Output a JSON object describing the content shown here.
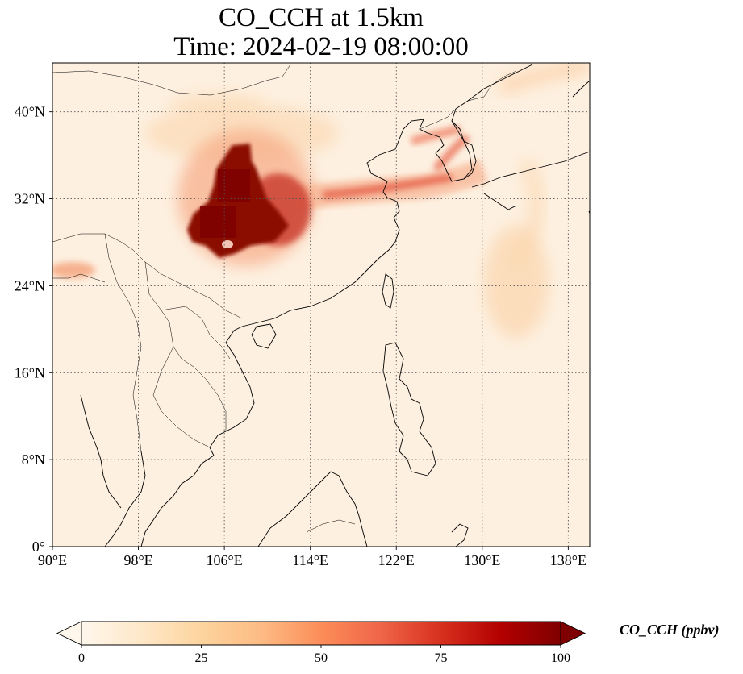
{
  "title": {
    "line1": "CO_CCH at 1.5km",
    "line2": "Time: 2024-02-19 08:00:00"
  },
  "map": {
    "projection": "PlateCarree",
    "lon_range": [
      90,
      140
    ],
    "lat_range": [
      0,
      44.5
    ],
    "gridlines": true,
    "gridline_style": "dotted",
    "x_ticks": [
      {
        "value": 90,
        "label": "90°E"
      },
      {
        "value": 98,
        "label": "98°E"
      },
      {
        "value": 106,
        "label": "106°E"
      },
      {
        "value": 114,
        "label": "114°E"
      },
      {
        "value": 122,
        "label": "122°E"
      },
      {
        "value": 130,
        "label": "130°E"
      },
      {
        "value": 138,
        "label": "138°E"
      }
    ],
    "y_ticks": [
      {
        "value": 0,
        "label": "0°"
      },
      {
        "value": 8,
        "label": "8°N"
      },
      {
        "value": 16,
        "label": "16°N"
      },
      {
        "value": 24,
        "label": "24°N"
      },
      {
        "value": 32,
        "label": "32°N"
      },
      {
        "value": 40,
        "label": "40°N"
      }
    ]
  },
  "colorbar": {
    "cmap": "OrRd",
    "min": 0,
    "max": 100,
    "extend": "both",
    "label": "CO_CCH (ppbv)",
    "ticks": [
      {
        "value": 0,
        "label": "0"
      },
      {
        "value": 25,
        "label": "25"
      },
      {
        "value": 50,
        "label": "50"
      },
      {
        "value": 75,
        "label": "75"
      },
      {
        "value": 100,
        "label": "100"
      }
    ],
    "colors": [
      "#fff7ec",
      "#fee8c8",
      "#fdd49e",
      "#fdbb84",
      "#fc8d59",
      "#ef6548",
      "#d7301f",
      "#b30000",
      "#7f0000"
    ]
  },
  "chart_data": {
    "type": "heatmap",
    "title": "CO_CCH at 1.5km\nTime: 2024-02-19 08:00:00",
    "xlabel": "",
    "ylabel": "",
    "xlim": [
      90,
      140
    ],
    "ylim": [
      0,
      44.5
    ],
    "value_range": [
      0,
      100
    ],
    "units": "ppbv",
    "features": [
      {
        "lon": [
          102.5,
          112
        ],
        "lat": [
          27,
          37.5
        ],
        "value": 100
      },
      {
        "lon": [
          108,
          113
        ],
        "lat": [
          29.5,
          33
        ],
        "value": 70
      },
      {
        "lon": [
          113,
          128
        ],
        "lat": [
          31.5,
          34.5
        ],
        "value": 55
      },
      {
        "lon": [
          124,
          127.5
        ],
        "lat": [
          34,
          38.5
        ],
        "value": 60
      },
      {
        "lon": [
          99,
          112
        ],
        "lat": [
          35,
          40.5
        ],
        "value": 20
      },
      {
        "lon": [
          132,
          138
        ],
        "lat": [
          20,
          30
        ],
        "value": 15
      },
      {
        "lon": [
          90,
          96
        ],
        "lat": [
          25,
          27
        ],
        "value": 40
      },
      {
        "lon": [
          130,
          140
        ],
        "lat": [
          38,
          45
        ],
        "value": 15
      }
    ]
  }
}
